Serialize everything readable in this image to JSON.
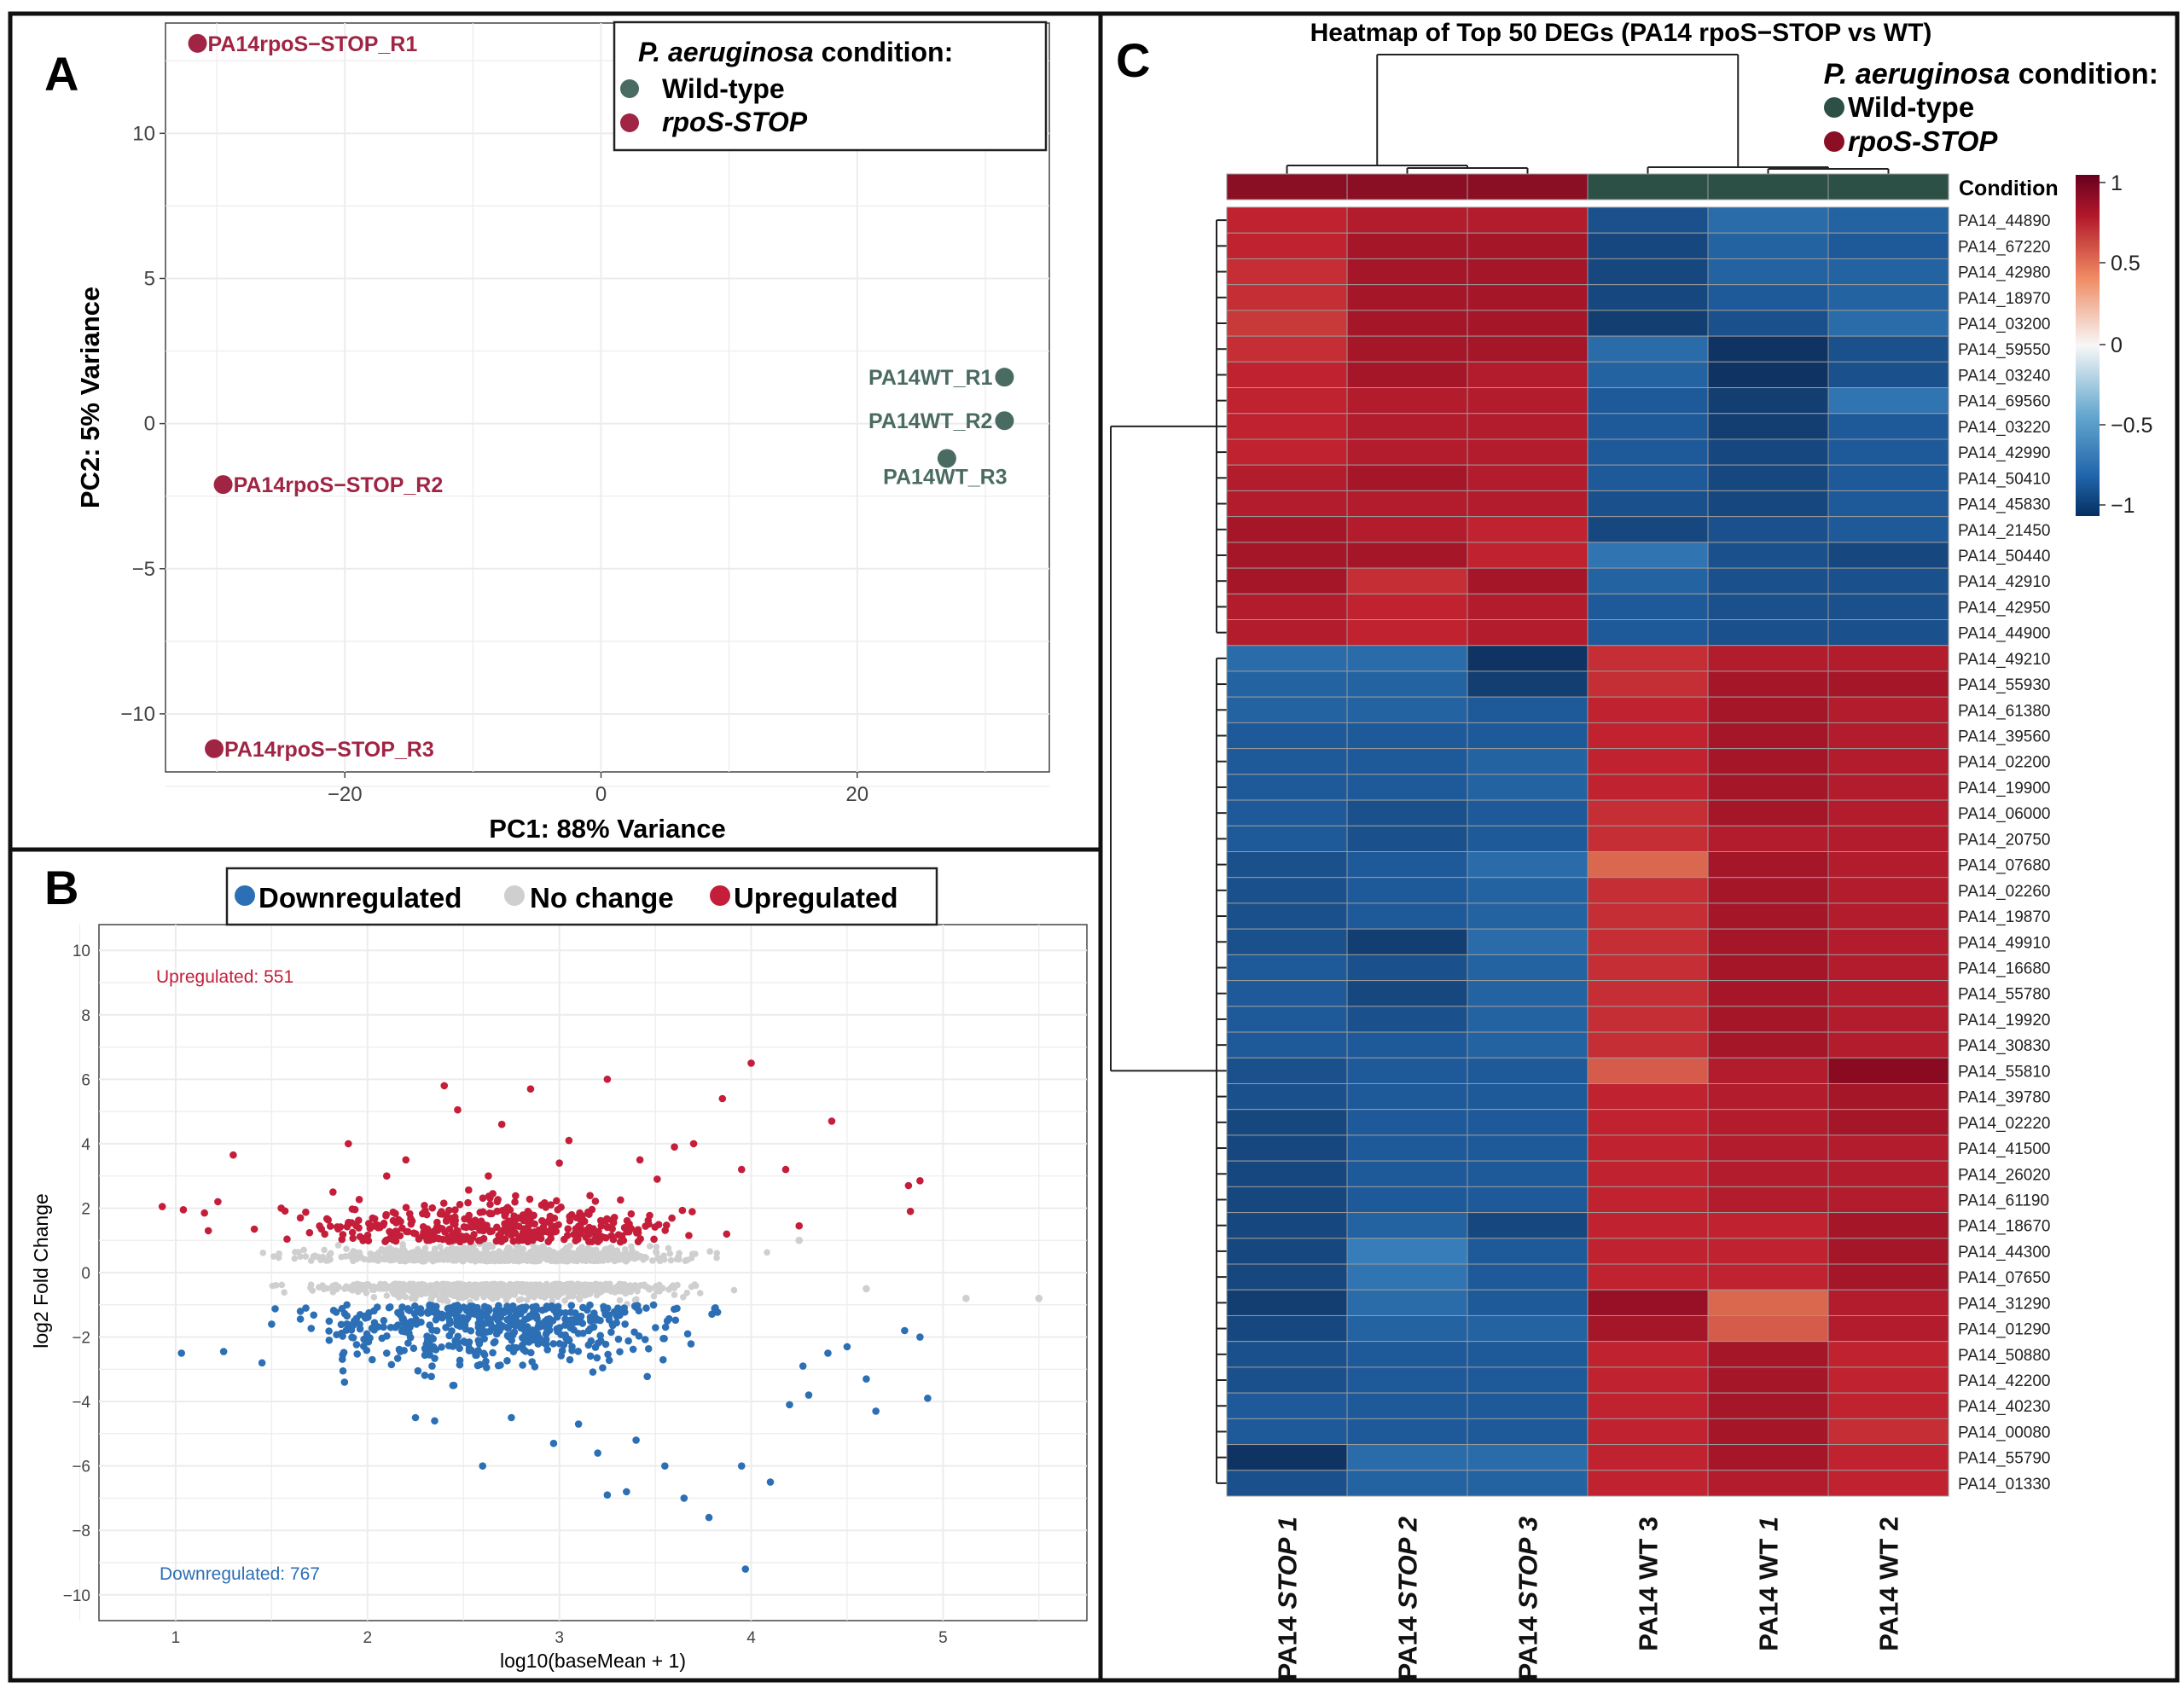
{
  "panel_a": {
    "letter": "A",
    "legend": {
      "title_italic": "P. aeruginosa",
      "title_rest": " condition:",
      "items": [
        "Wild-type",
        "rpoS-STOP"
      ]
    },
    "colors": {
      "wt": "#4a6b62",
      "stop": "#a02544"
    }
  },
  "panel_b": {
    "letter": "B",
    "legend": {
      "items": [
        "Downregulated",
        "No change",
        "Upregulated"
      ]
    },
    "upregulated_label": "Upregulated: 551",
    "downregulated_label": "Downregulated: 767",
    "colors": {
      "up": "#c41e3a",
      "down": "#2c6fb5",
      "nochange": "#cfcfcf"
    }
  },
  "panel_c": {
    "letter": "C",
    "legend": {
      "title_italic": "P. aeruginosa",
      "title_rest": " condition:",
      "items": [
        "Wild-type",
        "rpoS-STOP"
      ]
    },
    "condition_label": "Condition",
    "colorbar_ticks": [
      "1",
      "0.5",
      "0",
      "−0.5",
      "−1"
    ],
    "colors": {
      "high": "#8f0c24",
      "mid": "#f7f7f7",
      "low": "#133e73",
      "wt": "#2d5046",
      "stop": "#8a0f25"
    }
  },
  "chart_data": [
    {
      "type": "scatter",
      "title": "",
      "xlabel": "PC1: 88% Variance",
      "ylabel": "PC2: 5% Variance",
      "xlim": [
        -34,
        35
      ],
      "ylim": [
        -12,
        13.8
      ],
      "xticks": [
        -20,
        0,
        20
      ],
      "xtick_labels": [
        "−20",
        "0",
        "20"
      ],
      "yticks": [
        -10,
        -5,
        0,
        5,
        10
      ],
      "ytick_labels": [
        "−10",
        "−5",
        "0",
        "5",
        "10"
      ],
      "grid": true,
      "legend_position": "top-right",
      "points": [
        {
          "label": "PA14rpoS−STOP_R1",
          "x": -31.5,
          "y": 13.1,
          "group": "rpoS-STOP",
          "label_anchor": "right"
        },
        {
          "label": "PA14rpoS−STOP_R2",
          "x": -29.5,
          "y": -2.1,
          "group": "rpoS-STOP",
          "label_anchor": "right"
        },
        {
          "label": "PA14rpoS−STOP_R3",
          "x": -30.2,
          "y": -11.2,
          "group": "rpoS-STOP",
          "label_anchor": "right"
        },
        {
          "label": "PA14WT_R1",
          "x": 31.5,
          "y": 1.6,
          "group": "Wild-type",
          "label_anchor": "left"
        },
        {
          "label": "PA14WT_R2",
          "x": 31.5,
          "y": 0.1,
          "group": "Wild-type",
          "label_anchor": "left"
        },
        {
          "label": "PA14WT_R3",
          "x": 27.0,
          "y": -1.2,
          "group": "Wild-type",
          "label_anchor": "below"
        }
      ]
    },
    {
      "type": "scatter",
      "title": "",
      "xlabel": "log10(baseMean + 1)",
      "ylabel": "log2 Fold Change",
      "xlim": [
        0.6,
        5.75
      ],
      "ylim": [
        -10.8,
        10.8
      ],
      "xticks": [
        1,
        2,
        3,
        4,
        5
      ],
      "xtick_labels": [
        "1",
        "2",
        "3",
        "4",
        "5"
      ],
      "yticks": [
        -10,
        -8,
        -6,
        -4,
        -2,
        0,
        2,
        4,
        6,
        8,
        10
      ],
      "ytick_labels": [
        "−10",
        "−8",
        "−6",
        "−4",
        "−2",
        "0",
        "2",
        "4",
        "6",
        "8",
        "10"
      ],
      "grid": true,
      "legend_position": "top",
      "series": [
        {
          "name": "Upregulated",
          "count": 551,
          "points": [
            [
              0.93,
              2.05
            ],
            [
              1.04,
              1.95
            ],
            [
              1.15,
              1.85
            ],
            [
              1.17,
              1.3
            ],
            [
              1.22,
              2.2
            ],
            [
              1.3,
              3.65
            ],
            [
              1.41,
              1.35
            ],
            [
              1.55,
              2.0
            ],
            [
              1.65,
              1.7
            ],
            [
              1.82,
              2.5
            ],
            [
              1.9,
              4.0
            ],
            [
              2.1,
              3.0
            ],
            [
              2.2,
              3.5
            ],
            [
              2.4,
              5.8
            ],
            [
              2.47,
              5.05
            ],
            [
              2.63,
              3.0
            ],
            [
              2.7,
              4.6
            ],
            [
              2.85,
              5.7
            ],
            [
              3.0,
              3.4
            ],
            [
              3.05,
              4.1
            ],
            [
              3.25,
              6.0
            ],
            [
              3.42,
              3.5
            ],
            [
              3.51,
              2.9
            ],
            [
              3.6,
              3.9
            ],
            [
              3.7,
              4.0
            ],
            [
              3.85,
              5.4
            ],
            [
              3.95,
              3.2
            ],
            [
              4.0,
              6.5
            ],
            [
              4.18,
              3.2
            ],
            [
              4.25,
              1.45
            ],
            [
              4.42,
              4.7
            ],
            [
              4.82,
              2.7
            ],
            [
              4.88,
              2.85
            ],
            [
              4.83,
              1.9
            ]
          ]
        },
        {
          "name": "Downregulated",
          "count": 767,
          "points": [
            [
              1.03,
              -2.5
            ],
            [
              1.25,
              -2.45
            ],
            [
              1.45,
              -2.8
            ],
            [
              1.5,
              -1.6
            ],
            [
              1.65,
              -1.2
            ],
            [
              1.8,
              -2.1
            ],
            [
              1.88,
              -3.4
            ],
            [
              2.1,
              -2.5
            ],
            [
              2.25,
              -4.5
            ],
            [
              2.35,
              -4.6
            ],
            [
              2.45,
              -3.5
            ],
            [
              2.6,
              -6.0
            ],
            [
              2.75,
              -4.5
            ],
            [
              2.97,
              -5.3
            ],
            [
              3.1,
              -4.7
            ],
            [
              3.2,
              -5.6
            ],
            [
              3.25,
              -6.9
            ],
            [
              3.35,
              -6.8
            ],
            [
              3.4,
              -5.2
            ],
            [
              3.55,
              -6.0
            ],
            [
              3.65,
              -7.0
            ],
            [
              3.78,
              -7.6
            ],
            [
              3.95,
              -6.0
            ],
            [
              3.97,
              -9.2
            ],
            [
              4.1,
              -6.5
            ],
            [
              4.2,
              -4.1
            ],
            [
              4.3,
              -3.8
            ],
            [
              4.4,
              -2.5
            ],
            [
              4.5,
              -2.3
            ],
            [
              4.6,
              -3.3
            ],
            [
              4.65,
              -4.3
            ],
            [
              4.8,
              -1.8
            ],
            [
              4.88,
              -2.0
            ],
            [
              4.92,
              -3.9
            ],
            [
              4.27,
              -2.9
            ]
          ]
        },
        {
          "name": "No change",
          "count": null,
          "points": [
            [
              5.12,
              -0.8
            ],
            [
              5.5,
              -0.8
            ],
            [
              4.6,
              -0.5
            ],
            [
              4.25,
              1.0
            ]
          ]
        }
      ]
    },
    {
      "type": "heatmap",
      "title": "Heatmap of Top 50 DEGs (PA14 rpoS−STOP vs WT)",
      "columns": [
        {
          "prefix": "PA14 ",
          "emph": "STOP 1",
          "group": "rpoS-STOP"
        },
        {
          "prefix": "PA14 ",
          "emph": "STOP 2",
          "group": "rpoS-STOP"
        },
        {
          "prefix": "PA14 ",
          "emph": "STOP 3",
          "group": "rpoS-STOP"
        },
        {
          "prefix": "PA14 WT 3",
          "emph": "",
          "group": "Wild-type"
        },
        {
          "prefix": "PA14 WT ",
          "emph": "1",
          "group": "Wild-type"
        },
        {
          "prefix": "PA14 WT 2",
          "emph": "",
          "group": "Wild-type"
        }
      ],
      "rows": [
        "PA14_44890",
        "PA14_67220",
        "PA14_42980",
        "PA14_18970",
        "PA14_03200",
        "PA14_59550",
        "PA14_03240",
        "PA14_69560",
        "PA14_03220",
        "PA14_42990",
        "PA14_50410",
        "PA14_45830",
        "PA14_21450",
        "PA14_50440",
        "PA14_42910",
        "PA14_42950",
        "PA14_44900",
        "PA14_49210",
        "PA14_55930",
        "PA14_61380",
        "PA14_39560",
        "PA14_02200",
        "PA14_19900",
        "PA14_06000",
        "PA14_20750",
        "PA14_07680",
        "PA14_02260",
        "PA14_19870",
        "PA14_49910",
        "PA14_16680",
        "PA14_55780",
        "PA14_19920",
        "PA14_30830",
        "PA14_55810",
        "PA14_39780",
        "PA14_02220",
        "PA14_41500",
        "PA14_26020",
        "PA14_61190",
        "PA14_18670",
        "PA14_44300",
        "PA14_07650",
        "PA14_31290",
        "PA14_01290",
        "PA14_50880",
        "PA14_42200",
        "PA14_40230",
        "PA14_00080",
        "PA14_55790",
        "PA14_01330"
      ],
      "values": [
        [
          0.85,
          0.9,
          0.9,
          -0.9,
          -0.75,
          -0.8
        ],
        [
          0.85,
          0.95,
          0.95,
          -0.95,
          -0.8,
          -0.85
        ],
        [
          0.8,
          0.95,
          0.95,
          -0.95,
          -0.8,
          -0.8
        ],
        [
          0.8,
          0.95,
          0.95,
          -0.95,
          -0.85,
          -0.8
        ],
        [
          0.75,
          0.95,
          0.95,
          -1.0,
          -0.9,
          -0.75
        ],
        [
          0.8,
          0.95,
          0.95,
          -0.75,
          -1.05,
          -0.9
        ],
        [
          0.85,
          0.95,
          0.9,
          -0.8,
          -1.05,
          -0.9
        ],
        [
          0.85,
          0.9,
          0.9,
          -0.85,
          -1.0,
          -0.7
        ],
        [
          0.85,
          0.9,
          0.9,
          -0.85,
          -1.0,
          -0.85
        ],
        [
          0.85,
          0.9,
          0.9,
          -0.85,
          -0.95,
          -0.85
        ],
        [
          0.9,
          0.95,
          0.9,
          -0.85,
          -0.95,
          -0.85
        ],
        [
          0.9,
          0.9,
          0.9,
          -0.9,
          -0.95,
          -0.85
        ],
        [
          0.95,
          0.9,
          0.85,
          -0.95,
          -0.9,
          -0.85
        ],
        [
          0.95,
          0.95,
          0.85,
          -0.7,
          -0.9,
          -0.95
        ],
        [
          0.95,
          0.8,
          0.95,
          -0.8,
          -0.9,
          -0.9
        ],
        [
          0.9,
          0.85,
          0.9,
          -0.85,
          -0.9,
          -0.9
        ],
        [
          0.9,
          0.85,
          0.9,
          -0.85,
          -0.9,
          -0.9
        ],
        [
          -0.75,
          -0.75,
          -1.05,
          0.8,
          0.9,
          0.9
        ],
        [
          -0.8,
          -0.8,
          -1.0,
          0.8,
          0.95,
          0.95
        ],
        [
          -0.8,
          -0.8,
          -0.85,
          0.85,
          0.95,
          0.9
        ],
        [
          -0.85,
          -0.85,
          -0.85,
          0.85,
          0.95,
          0.9
        ],
        [
          -0.85,
          -0.85,
          -0.8,
          0.85,
          0.95,
          0.9
        ],
        [
          -0.85,
          -0.85,
          -0.8,
          0.85,
          0.95,
          0.9
        ],
        [
          -0.85,
          -0.9,
          -0.85,
          0.8,
          0.95,
          0.9
        ],
        [
          -0.85,
          -0.9,
          -0.85,
          0.8,
          0.9,
          0.9
        ],
        [
          -0.9,
          -0.85,
          -0.75,
          0.55,
          0.95,
          0.9
        ],
        [
          -0.9,
          -0.85,
          -0.8,
          0.8,
          0.95,
          0.9
        ],
        [
          -0.9,
          -0.85,
          -0.8,
          0.8,
          0.95,
          0.9
        ],
        [
          -0.9,
          -1.0,
          -0.75,
          0.8,
          0.95,
          0.9
        ],
        [
          -0.85,
          -0.9,
          -0.8,
          0.8,
          0.95,
          0.9
        ],
        [
          -0.85,
          -0.95,
          -0.8,
          0.8,
          0.95,
          0.9
        ],
        [
          -0.85,
          -0.9,
          -0.8,
          0.8,
          0.95,
          0.9
        ],
        [
          -0.85,
          -0.85,
          -0.8,
          0.8,
          0.95,
          0.9
        ],
        [
          -0.9,
          -0.85,
          -0.85,
          0.6,
          0.9,
          1.05
        ],
        [
          -0.9,
          -0.85,
          -0.85,
          0.85,
          0.9,
          0.95
        ],
        [
          -0.95,
          -0.85,
          -0.85,
          0.85,
          0.9,
          0.95
        ],
        [
          -0.95,
          -0.85,
          -0.85,
          0.85,
          0.9,
          0.9
        ],
        [
          -0.95,
          -0.85,
          -0.85,
          0.85,
          0.9,
          0.9
        ],
        [
          -0.95,
          -0.85,
          -0.85,
          0.85,
          0.9,
          0.9
        ],
        [
          -0.95,
          -0.8,
          -0.95,
          0.85,
          0.85,
          0.95
        ],
        [
          -0.95,
          -0.65,
          -0.85,
          0.85,
          0.85,
          0.95
        ],
        [
          -0.95,
          -0.7,
          -0.85,
          0.85,
          0.85,
          0.95
        ],
        [
          -1.0,
          -0.75,
          -0.85,
          1.0,
          0.55,
          0.9
        ],
        [
          -0.95,
          -0.8,
          -0.8,
          0.95,
          0.6,
          0.9
        ],
        [
          -0.9,
          -0.85,
          -0.85,
          0.85,
          0.95,
          0.85
        ],
        [
          -0.9,
          -0.85,
          -0.85,
          0.85,
          0.95,
          0.85
        ],
        [
          -0.85,
          -0.85,
          -0.85,
          0.85,
          0.95,
          0.85
        ],
        [
          -0.85,
          -0.85,
          -0.85,
          0.85,
          0.95,
          0.8
        ],
        [
          -1.05,
          -0.75,
          -0.75,
          0.85,
          0.95,
          0.85
        ],
        [
          -0.9,
          -0.8,
          -0.8,
          0.85,
          0.9,
          0.85
        ]
      ],
      "value_range": [
        -1,
        1
      ]
    }
  ]
}
